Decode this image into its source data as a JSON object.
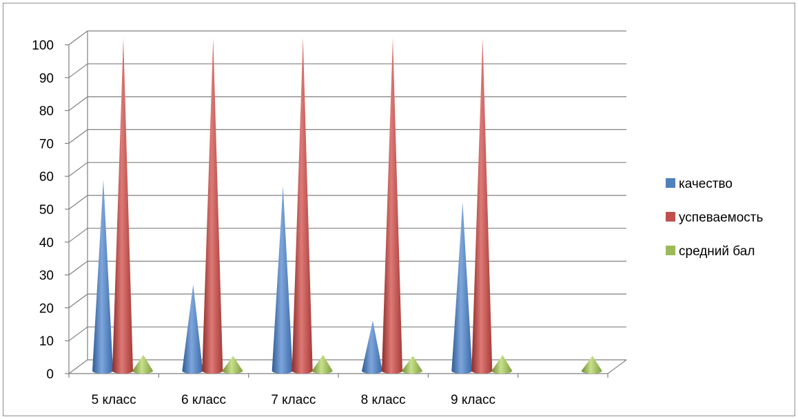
{
  "chart_data": {
    "type": "bar",
    "subtype": "3d-cone",
    "title": "",
    "xlabel": "",
    "ylabel": "",
    "ylim": [
      0,
      100
    ],
    "ytick_values": [
      0,
      10,
      20,
      30,
      40,
      50,
      60,
      70,
      80,
      90,
      100
    ],
    "ytick_labels": [
      "0",
      "10",
      "20",
      "30",
      "40",
      "50",
      "60",
      "70",
      "80",
      "90",
      "100"
    ],
    "categories": [
      "5 класс",
      "6 класс",
      "7 класс",
      "8 класс",
      "9 класс",
      ""
    ],
    "series": [
      {
        "name": "качество",
        "color": "#4f81bd",
        "values": [
          57,
          25,
          55,
          14,
          50,
          null
        ]
      },
      {
        "name": "успеваемость",
        "color": "#c0504d",
        "values": [
          100,
          100,
          100,
          100,
          100,
          null
        ]
      },
      {
        "name": "средний бал",
        "color": "#9bbb59",
        "values": [
          3.6,
          3.3,
          3.6,
          3.3,
          3.5,
          3.3
        ]
      }
    ],
    "grid": true,
    "legend_position": "right"
  }
}
